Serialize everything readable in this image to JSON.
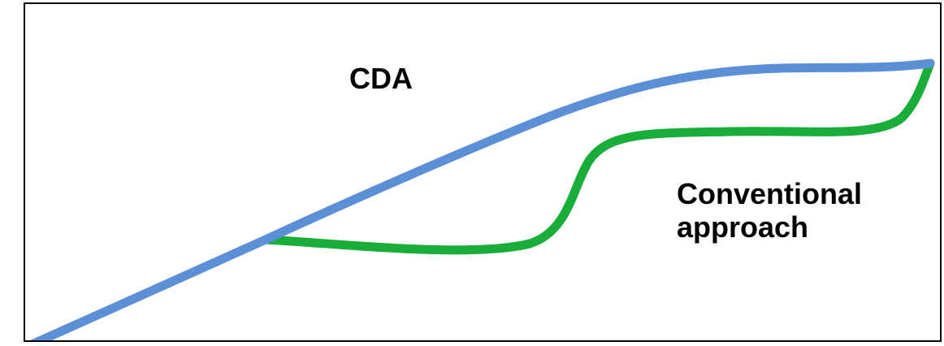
{
  "diagram": {
    "labels": {
      "cda": "CDA",
      "conventional_line1": "Conventional",
      "conventional_line2": "approach"
    },
    "colors": {
      "cda_path": "#5b8fd6",
      "conventional_path": "#1aad3a",
      "frame": "#000000",
      "text": "#000000"
    }
  }
}
